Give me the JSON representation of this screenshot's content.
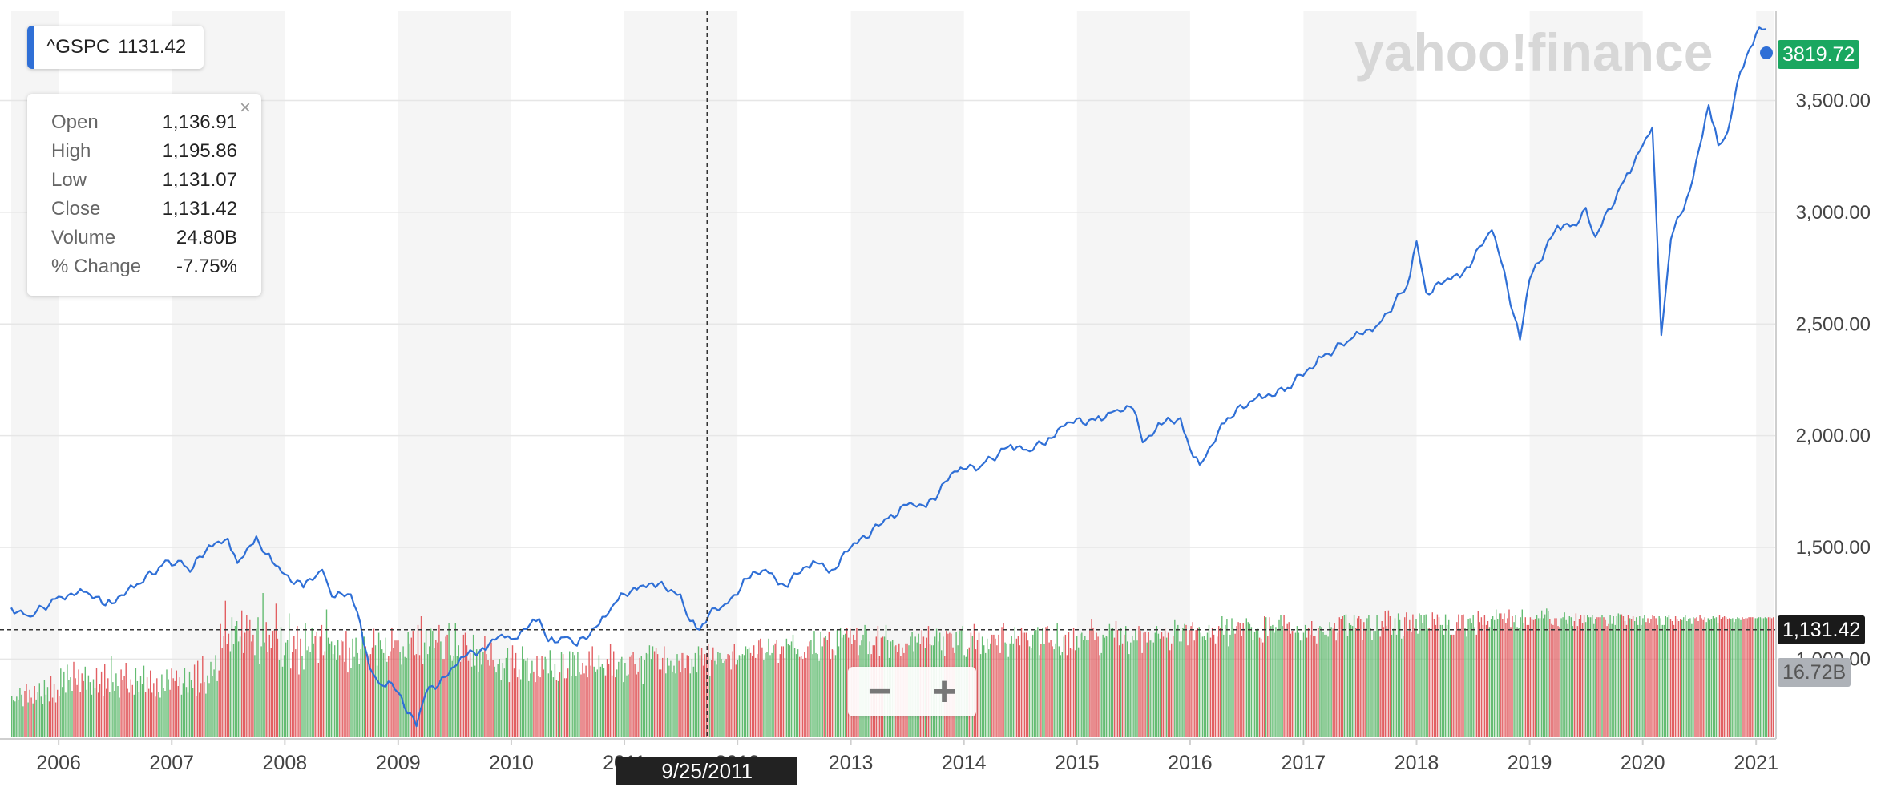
{
  "colors": {
    "line": "#2f6fd6",
    "vol_up": "#5cb86a",
    "vol_down": "#e0565a",
    "band": "#f5f5f5",
    "last_tag": "#1aa760",
    "cursor_tag": "#1a1a1a",
    "vol_tag": "#aeb2b8"
  },
  "header": {
    "symbol": "^GSPC",
    "value": "1131.42"
  },
  "tooltip": {
    "rows": [
      {
        "label": "Open",
        "value": "1,136.91"
      },
      {
        "label": "High",
        "value": "1,195.86"
      },
      {
        "label": "Low",
        "value": "1,131.07"
      },
      {
        "label": "Close",
        "value": "1,131.42"
      },
      {
        "label": "Volume",
        "value": "24.80B"
      },
      {
        "label": "% Change",
        "value": "-7.75%"
      }
    ]
  },
  "watermark": "yahoo!finance",
  "tags": {
    "last_price": "3819.72",
    "cursor_price": "1,131.42",
    "volume": "16.72B"
  },
  "crosshair": {
    "date": "9/25/2011",
    "price": 1131.42
  },
  "zoom": {
    "minus": "−",
    "plus": "+"
  },
  "chart_data": {
    "type": "line",
    "series": [
      {
        "x": [
          "2005-08",
          "2005-10",
          "2006-01",
          "2006-04",
          "2006-06",
          "2006-09",
          "2006-12",
          "2007-02",
          "2007-03",
          "2007-05",
          "2007-07",
          "2007-08",
          "2007-10",
          "2007-11",
          "2008-01",
          "2008-03",
          "2008-05",
          "2008-06",
          "2008-08",
          "2008-09",
          "2008-10",
          "2008-11",
          "2008-12",
          "2009-01",
          "2009-03",
          "2009-04",
          "2009-06",
          "2009-08",
          "2009-10",
          "2009-12",
          "2010-01",
          "2010-04",
          "2010-05",
          "2010-07",
          "2010-08",
          "2010-11",
          "2010-12",
          "2011-02",
          "2011-04",
          "2011-06",
          "2011-07",
          "2011-08",
          "2011-09",
          "2011-10",
          "2011-12",
          "2012-02",
          "2012-04",
          "2012-06",
          "2012-09",
          "2012-11",
          "2013-01",
          "2013-05",
          "2013-07",
          "2013-09",
          "2013-12",
          "2014-03",
          "2014-06",
          "2014-08",
          "2014-10",
          "2014-12",
          "2015-03",
          "2015-05",
          "2015-07",
          "2015-08",
          "2015-10",
          "2015-12",
          "2016-01",
          "2016-02",
          "2016-05",
          "2016-08",
          "2016-11",
          "2016-12",
          "2017-03",
          "2017-06",
          "2017-09",
          "2017-12",
          "2018-01",
          "2018-02",
          "2018-04",
          "2018-06",
          "2018-09",
          "2018-10",
          "2018-12",
          "2019-01",
          "2019-04",
          "2019-06",
          "2019-07",
          "2019-08",
          "2019-11",
          "2020-01",
          "2020-02",
          "2020-03",
          "2020-04",
          "2020-06",
          "2020-08",
          "2020-09",
          "2020-10",
          "2020-11",
          "2020-12",
          "2021-01",
          "2021-02"
        ],
        "y": [
          1230,
          1190,
          1280,
          1300,
          1240,
          1320,
          1420,
          1440,
          1390,
          1510,
          1540,
          1430,
          1550,
          1470,
          1380,
          1320,
          1400,
          1280,
          1290,
          1160,
          960,
          890,
          900,
          850,
          700,
          850,
          920,
          1010,
          1050,
          1110,
          1090,
          1180,
          1080,
          1100,
          1060,
          1190,
          1250,
          1320,
          1340,
          1310,
          1290,
          1170,
          1131,
          1200,
          1250,
          1360,
          1400,
          1330,
          1440,
          1400,
          1500,
          1630,
          1690,
          1680,
          1840,
          1870,
          1960,
          1930,
          1990,
          2060,
          2070,
          2110,
          2120,
          1970,
          2050,
          2080,
          1940,
          1870,
          2080,
          2170,
          2200,
          2240,
          2350,
          2430,
          2500,
          2670,
          2870,
          2640,
          2690,
          2730,
          2920,
          2780,
          2430,
          2700,
          2940,
          2940,
          3020,
          2890,
          3140,
          3300,
          3380,
          2450,
          2880,
          3100,
          3480,
          3300,
          3360,
          3580,
          3700,
          3800,
          3820
        ]
      }
    ],
    "volume": [
      4.3,
      3.8,
      3.7,
      4.2,
      3.9,
      5.1,
      4.4,
      3.2,
      4.8,
      5.5,
      3.6,
      4.9,
      4.1,
      3.5,
      5.3,
      3.9,
      4.7,
      5.6,
      4.2,
      3.4,
      5.9,
      4.4,
      5.2,
      3.7,
      6.3,
      4.1,
      5.5,
      3.6,
      4.9,
      4.3,
      7.1,
      5.2,
      6.8,
      4.6,
      7.5,
      5.9,
      6.2,
      4.8,
      7.8,
      6.1,
      5.4,
      7.0,
      4.7,
      6.6,
      5.8,
      7.3,
      4.9,
      6.4,
      5.7,
      4.4,
      6.0,
      5.1,
      7.2,
      4.6,
      5.5,
      6.8,
      4.3,
      7.6,
      5.0,
      6.1,
      4.7,
      8.4,
      5.7,
      4.8,
      6.6,
      5.3,
      4.1,
      7.0,
      5.9,
      6.3,
      7.7,
      5.0,
      4.6,
      6.0,
      5.4,
      4.4,
      7.2,
      5.8,
      4.7,
      6.3,
      5.5,
      7.4,
      4.7,
      6.2,
      5.0,
      6.9,
      4.6,
      5.6,
      4.2,
      6.1,
      4.7,
      4.1,
      6.5,
      5.1,
      4.8,
      7.0,
      6.0,
      4.9,
      7.1,
      6.1,
      5.8,
      6.9,
      5.3,
      6.2,
      4.4,
      5.6,
      7.2,
      5.2,
      4.6,
      6.8,
      5.9,
      5.1,
      7.5,
      4.3,
      7.9,
      4.6,
      5.6,
      8.4,
      5.7,
      4.5,
      6.4,
      5.6,
      7.8,
      6.3,
      7.0,
      8.5,
      5.8,
      6.9,
      11.7,
      9.2,
      10.5,
      14.1,
      9.6,
      10.7,
      8.9,
      12.4,
      9.6,
      11.5,
      12.0,
      9.9,
      10.4,
      13.1,
      8.7,
      10.8,
      12.6,
      11.0,
      12.1,
      9.9,
      10.6,
      8.5,
      11.2,
      12.4,
      7.6,
      9.4,
      14.9,
      9.8,
      11.9,
      8.8,
      10.6,
      9.2,
      11.0,
      11.1,
      13.8,
      10.2,
      8.0,
      11.4,
      7.3,
      8.5,
      9.8,
      10.1,
      12.8,
      7.1,
      8.8,
      10.5,
      9.1,
      11.5,
      6.5,
      10.2,
      8.4,
      7.0,
      11.8,
      9.0,
      9.4,
      8.8,
      11.3,
      9.7,
      10.5,
      10.9,
      7.7,
      10.4,
      11.6,
      8.5,
      8.9,
      13.2,
      10.3,
      9.7,
      9.9,
      8.6,
      9.5,
      8.0,
      10.1,
      8.5,
      10.0,
      9.9,
      7.8,
      11.0,
      6.7,
      9.3,
      7.2,
      10.2,
      8.3,
      10.3,
      8.7,
      7.6,
      9.1,
      10.9,
      10.4,
      9.4,
      8.6,
      8.5,
      8.6,
      9.3,
      11.2,
      9.5,
      7.4,
      10.8,
      10.0,
      9.1,
      8.7,
      10.3,
      7.8,
      8.4,
      8.9,
      11.3,
      9.2,
      10.0,
      10.0,
      10.0,
      8.8,
      7.5,
      9.4,
      8.3,
      8.2,
      10.9,
      9.7,
      10.3,
      11.0,
      8.5,
      8.6,
      11.6,
      8.5,
      12.5,
      7.6,
      9.8,
      11.1,
      8.6,
      9.4,
      11.2,
      11.0,
      9.2,
      10.1,
      9.8,
      11.6,
      9.9,
      8.1,
      8.1,
      10.4,
      10.6,
      11.8,
      8.5,
      7.9,
      8.4,
      11.8,
      8.4,
      9.5,
      7.8,
      8.0,
      10.6,
      10.8,
      9.5,
      7.9,
      8.7,
      7.3,
      10.6,
      7.4,
      9.1,
      6.8,
      9.1,
      7.5,
      8.8,
      10.5,
      8.6,
      8.0,
      7.4,
      9.8,
      8.0,
      7.3,
      6.7,
      7.6,
      8.1,
      5.9,
      7.7,
      7.1,
      8.2,
      9.2,
      5.7,
      8.2,
      9.5,
      7.1,
      8.7,
      6.2,
      7.0,
      6.0,
      9.4,
      8.1,
      7.9,
      8.2,
      5.8,
      6.6,
      7.9,
      6.8,
      5.7,
      8.4,
      6.3,
      6.2,
      8.4,
      7.0,
      8.3,
      8.1,
      6.6,
      9.0,
      6.9,
      6.2,
      7.6,
      5.9,
      5.8,
      6.7,
      8.8,
      8.6,
      6.1,
      6.1,
      7.1,
      8.9,
      6.3,
      8.8,
      8.5,
      6.3,
      8.8,
      6.7,
      6.5,
      7.7,
      6.6,
      7.4,
      6.2,
      8.9,
      7.4,
      9.4,
      7.3,
      6.8,
      7.0,
      8.5,
      7.3,
      7.6,
      7.2,
      6.4,
      8.1,
      7.6,
      9.6,
      6.4,
      8.9,
      6.2,
      7.0,
      7.8,
      8.1,
      8.3,
      5.7,
      7.7,
      6.4,
      6.5,
      8.3,
      8.5,
      8.8,
      7.6,
      6.5,
      6.8,
      8.2,
      8.4,
      5.5,
      8.0,
      8.7,
      8.6,
      9.5,
      8.1,
      9.4,
      8.9,
      9.2,
      8.6,
      7.0,
      7.0,
      8.2,
      9.4,
      6.6,
      8.2,
      7.4,
      7.9,
      6.8,
      7.4,
      6.6,
      8.6,
      7.9,
      6.7,
      8.7,
      8.7,
      7.2,
      8.5,
      8.4,
      6.6,
      8.1,
      7.3,
      8.7,
      6.7,
      9.4,
      8.5,
      9.2,
      7.4,
      8.6,
      8.7,
      9.6,
      6.3,
      8.0,
      9.3,
      7.9,
      7.5,
      8.8,
      8.7,
      8.1,
      7.7,
      7.9,
      8.1,
      8.6,
      8.5,
      7.0,
      8.9,
      9.6,
      7.5,
      8.0,
      8.5,
      8.4,
      8.6,
      8.5,
      9.4,
      9.1,
      9.3,
      8.7,
      8.4,
      9.5,
      8.2,
      8.6,
      10.0,
      10.2,
      9.3,
      8.0,
      8.7,
      8.8,
      10.2,
      8.5,
      8.7,
      9.5,
      9.7,
      10.1,
      7.7,
      8.6,
      9.4,
      9.4,
      8.2,
      10.2,
      9.6,
      9.5,
      9.9,
      10.6,
      9.2,
      8.6,
      9.1,
      8.3,
      8.4,
      8.1,
      8.8,
      8.2,
      9.4,
      9.9,
      10.1,
      8.6,
      11.0,
      8.7,
      8.6,
      7.9,
      10.9,
      9.4,
      10.3,
      10.5,
      10.1,
      10.9,
      8.1,
      9.1,
      9.0,
      8.5,
      11.1,
      9.4,
      11.3,
      10.3,
      10.6,
      10.7,
      11.3,
      10.3,
      11.2,
      9.6,
      10.6,
      10.1,
      11.3,
      8.5,
      9.5,
      10.0,
      10.6,
      11.6,
      11.1,
      8.6,
      9.9,
      8.6,
      9.5,
      9.5,
      10.4,
      11.5,
      8.4,
      10.3,
      10.4,
      10.4,
      11.6,
      10.1,
      8.2,
      9.9,
      10.1,
      9.4,
      9.5,
      8.8,
      9.7,
      8.4,
      9.3,
      8.7,
      9.7,
      9.7,
      9.5,
      10.4,
      10.9,
      8.9,
      10.4,
      9.8,
      10.7,
      9.6,
      11.1,
      10.4,
      9.2,
      10.3,
      11.5,
      9.6,
      9.5,
      9.5,
      10.4,
      11.2,
      9.9,
      10.8,
      9.0,
      10.4,
      8.4,
      11.0,
      10.7,
      10.8,
      10.7,
      9.3,
      8.7,
      10.9,
      9.5,
      11.0,
      11.1,
      11.5,
      8.5,
      8.3,
      9.1,
      9.3,
      10.8,
      10.5,
      11.7,
      9.1,
      10.1,
      10.8,
      8.6,
      10.4,
      9.5,
      8.7,
      10.2,
      9.1,
      9.7,
      10.6,
      10.6,
      10.2,
      9.5,
      10.6,
      8.7,
      11.4,
      11.8,
      9.8,
      9.7,
      8.3,
      9.7,
      10.5,
      9.7,
      11.4,
      10.2,
      10.5,
      9.5,
      11.3,
      10.8,
      10.8,
      10.8,
      10.0,
      9.4,
      9.2,
      10.6,
      11.0,
      11.1,
      11.4,
      8.5,
      9.6,
      11.3,
      9.6,
      11.4,
      11.5,
      9.8,
      10.1,
      9.4,
      9.1,
      9.7,
      11.8,
      9.4,
      8.5,
      8.8,
      10.4,
      10.6,
      8.5,
      10.9,
      9.2,
      9.1,
      11.3,
      9.0,
      10.5,
      9.3,
      10.7,
      10.8,
      10.1,
      10.5,
      10.1,
      10.1,
      11.2,
      12.2,
      11.3,
      10.1,
      10.8,
      10.4,
      8.5,
      8.7,
      10.6,
      10.3,
      10.5,
      10.4,
      11.7,
      11.2,
      11.3,
      10.3,
      12.0,
      11.1,
      9.5,
      11.3,
      9.7,
      10.6,
      11.5,
      9.9,
      8.6,
      9.8,
      10.5,
      10.0,
      11.1,
      10.0,
      11.5,
      11.0,
      8.7,
      10.8,
      10.9,
      9.8,
      10.9,
      10.0,
      10.0,
      9.8,
      10.8,
      11.5,
      10.7,
      10.2,
      10.9,
      10.4,
      11.2,
      10.3,
      10.8,
      9.0,
      9.7,
      10.5,
      12.1,
      11.2,
      11.6,
      9.9,
      9.9,
      11.3,
      11.7,
      11.6,
      9.5,
      11.1,
      11.5,
      11.9,
      10.0,
      11.1,
      11.3,
      11.4,
      10.8,
      10.4,
      10.5,
      10.1,
      10.8,
      11.6,
      10.3,
      11.3,
      10.6,
      9.7,
      10.4,
      11.5,
      11.3,
      12.5,
      10.6,
      11.6,
      12.2,
      9.4,
      10.6,
      12.3,
      11.2,
      10.7,
      11.5,
      11.9,
      11.8,
      10.5,
      11.8,
      11.2,
      12.3,
      11.9,
      11.7,
      11.4,
      10.1,
      10.9,
      11.1,
      11.2,
      10.3,
      10.2,
      9.8,
      12.5,
      12.4,
      10.5,
      12.4,
      11.5,
      11.6,
      10.8,
      11.4,
      11.1,
      12.1,
      12.6,
      11.5,
      12.6,
      11.2,
      11.7,
      11.9,
      10.7,
      11.0,
      11.1,
      10.8,
      11.5,
      10.8,
      10.0,
      10.0,
      10.8,
      11.6,
      10.3,
      11.3,
      10.6,
      12.0,
      10.5,
      10.5,
      9.7,
      11.3,
      11.5,
      11.4,
      10.9,
      10.6,
      10.6,
      10.4,
      11.9,
      11.4,
      11.2,
      11.8,
      10.0,
      10.8,
      12.4,
      12.2,
      12.5,
      12.6,
      12.7,
      10.5,
      11.8,
      11.6,
      11.5,
      12.6,
      11.3,
      12.3,
      12.5,
      12.2,
      10.1,
      11.9,
      11.2,
      12.3,
      12.6,
      11.3,
      10.1,
      11.0,
      11.0,
      12.6,
      11.1,
      10.4,
      12.0,
      11.4,
      13.0,
      11.5,
      13.1,
      12.5,
      10.6,
      11.2,
      12.3,
      10.6,
      12.8,
      12.1,
      10.2,
      10.5,
      12.4,
      12.9,
      11.0,
      12.1,
      10.9,
      12.7,
      11.3,
      12.2,
      10.7,
      12.8,
      12.6,
      11.8,
      12.6,
      12.7,
      11.2,
      11.3,
      11.0,
      12.9,
      12.2,
      11.6,
      12.7,
      12.4,
      11.6,
      11.6,
      10.6,
      12.7,
      11.6,
      12.1,
      10.6,
      10.6,
      10.6,
      11.0,
      11.9,
      12.7,
      11.2,
      12.6,
      12.7,
      11.3,
      10.4,
      12.2,
      12.3,
      11.8,
      12.6,
      11.4,
      10.6,
      13.0,
      11.9,
      12.4,
      11.6,
      12.6,
      11.6,
      12.0,
      11.4,
      12.2,
      12.5,
      12.1,
      13.2,
      12.2,
      12.8,
      12.8,
      12.2,
      12.8,
      11.8,
      12.3,
      13.2,
      11.4,
      12.5,
      11.9,
      12.6,
      11.4,
      11.3,
      12.4,
      13.2,
      11.8,
      12.4,
      11.6,
      11.6,
      12.4,
      12.2,
      12.1,
      12.2,
      12.6,
      12.3,
      12.3,
      13.1,
      12.3,
      12.7,
      13.3,
      13.0,
      12.2,
      11.7,
      11.6,
      12.3,
      12.3,
      11.5,
      11.4,
      12.3,
      12.4,
      12.9,
      12.1,
      11.7,
      12.5,
      12.4,
      11.5,
      12.0,
      12.8,
      11.5,
      12.2,
      12.6,
      11.8,
      12.6,
      11.9,
      12.6,
      12.4,
      12.4,
      12.6,
      11.7,
      12.2,
      12.4,
      12.4,
      12.4,
      12.6,
      12.4,
      12.1,
      11.5,
      11.7,
      12.6,
      11.7,
      12.5,
      11.6,
      12.5,
      12.8,
      12.7,
      12.7,
      12.5,
      12.0,
      11.6,
      12.6,
      12.3,
      12.2,
      12.5,
      12.0,
      12.4,
      11.6,
      12.5,
      11.6,
      12.3,
      12.6,
      11.9,
      12.3,
      11.8,
      12.2,
      12.6,
      12.5,
      12.3,
      11.6,
      12.5,
      12.3,
      11.6,
      11.6,
      12.5,
      12.4,
      12.6,
      12.2,
      12.0,
      11.6,
      12.5,
      12.2,
      12.0,
      12.2,
      12.1,
      12.4,
      12.6,
      12.0,
      12.2,
      12.3,
      11.7,
      12.4,
      12.3,
      12.4,
      12.0,
      12.6,
      12.3,
      12.1,
      12.4,
      11.9,
      12.3,
      12.1,
      12.2,
      12.5,
      12.3,
      12.4,
      11.8,
      12.6,
      12.2,
      12.4,
      12.5,
      12.4,
      12.2,
      12.3,
      12.2,
      12.3,
      11.9,
      12.2,
      12.4,
      12.3,
      12.1,
      12.4,
      12.2,
      12.3,
      12.3,
      12.4,
      12.4,
      12.4,
      12.4,
      12.3,
      12.3,
      12.4,
      12.4,
      12.3,
      12.3,
      12.4,
      12.3,
      12.4,
      12.4,
      12.3,
      12.4
    ],
    "xlabels": [
      "2006",
      "2007",
      "2008",
      "2009",
      "2010",
      "2011",
      "2012",
      "2013",
      "2014",
      "2015",
      "2016",
      "2017",
      "2018",
      "2019",
      "2020",
      "2021"
    ],
    "yticks": [
      "1,000.00",
      "1,500.00",
      "2,000.00",
      "2,500.00",
      "3,000.00",
      "3,500.00"
    ],
    "ytick_values": [
      1000,
      1500,
      2000,
      2500,
      3000,
      3500
    ],
    "ylim": [
      650,
      3900
    ],
    "xlim": [
      "2005-08",
      "2021-03"
    ],
    "grid": true,
    "legend": "top-left"
  }
}
